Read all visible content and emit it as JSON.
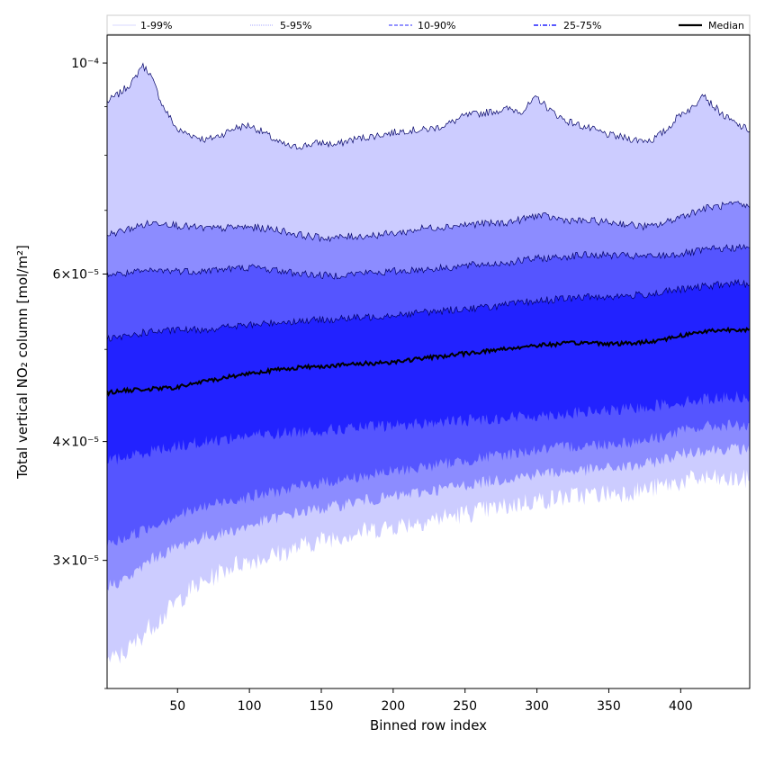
{
  "chart_data": {
    "type": "area",
    "title": "",
    "xlabel": "Binned row index",
    "ylabel": "Total vertical NO₂ column [mol/m²]",
    "xlim": [
      1,
      448
    ],
    "ylim": [
      2.2e-05,
      0.000107
    ],
    "yscale": "log",
    "grid": false,
    "legend_position": "top",
    "x_ticks": [
      50,
      100,
      150,
      200,
      250,
      300,
      350,
      400
    ],
    "y_tick_labels": [
      {
        "value": 0.0001,
        "label": "10⁻⁴"
      },
      {
        "value": 6e-05,
        "label": "6×10⁻⁵"
      },
      {
        "value": 4e-05,
        "label": "4×10⁻⁵"
      },
      {
        "value": 3e-05,
        "label": "3×10⁻⁵"
      }
    ],
    "y_minor_ticks": [
      2.2e-05,
      5e-05,
      7e-05,
      8e-05,
      9e-05
    ],
    "colors": {
      "band_1_99": "#ccccff",
      "band_5_95": "#8c8cff",
      "band_10_90": "#5555ff",
      "band_25_75": "#2222ff",
      "median": "#000000",
      "edge_line": "#000066"
    },
    "legend": [
      {
        "label": "1-99%",
        "style": "thin-solid",
        "color": "#ccccff"
      },
      {
        "label": "5-95%",
        "style": "thin-dotted",
        "color": "#8c8cff"
      },
      {
        "label": "10-90%",
        "style": "dashed",
        "color": "#5555ff"
      },
      {
        "label": "25-75%",
        "style": "dashdot",
        "color": "#2222ff"
      },
      {
        "label": "Median",
        "style": "thick-solid",
        "color": "#000000"
      }
    ],
    "x": [
      1,
      10,
      20,
      25,
      30,
      40,
      50,
      60,
      70,
      80,
      90,
      100,
      110,
      120,
      130,
      140,
      150,
      160,
      170,
      180,
      190,
      200,
      210,
      220,
      230,
      240,
      250,
      260,
      270,
      280,
      290,
      300,
      310,
      320,
      330,
      340,
      350,
      360,
      370,
      380,
      390,
      400,
      410,
      415,
      420,
      430,
      440,
      448
    ],
    "series": [
      {
        "name": "1-99%",
        "upper": [
          9.1e-05,
          9.3e-05,
          9.6e-05,
          9.95e-05,
          9.8e-05,
          9e-05,
          8.5e-05,
          8.4e-05,
          8.3e-05,
          8.4e-05,
          8.55e-05,
          8.6e-05,
          8.45e-05,
          8.25e-05,
          8.15e-05,
          8.2e-05,
          8.25e-05,
          8.2e-05,
          8.3e-05,
          8.35e-05,
          8.4e-05,
          8.45e-05,
          8.5e-05,
          8.5e-05,
          8.55e-05,
          8.65e-05,
          8.8e-05,
          8.85e-05,
          8.9e-05,
          8.95e-05,
          8.9e-05,
          9.2e-05,
          8.9e-05,
          8.7e-05,
          8.6e-05,
          8.5e-05,
          8.4e-05,
          8.35e-05,
          8.3e-05,
          8.3e-05,
          8.5e-05,
          8.85e-05,
          9e-05,
          9.35e-05,
          9.1e-05,
          8.8e-05,
          8.6e-05,
          8.5e-05
        ],
        "lower": [
          2.35e-05,
          2.38e-05,
          2.45e-05,
          2.5e-05,
          2.55e-05,
          2.62e-05,
          2.72e-05,
          2.8e-05,
          2.85e-05,
          2.92e-05,
          2.97e-05,
          3e-05,
          3.02e-05,
          3.05e-05,
          3.08e-05,
          3.12e-05,
          3.15e-05,
          3.18e-05,
          3.2e-05,
          3.22e-05,
          3.24e-05,
          3.26e-05,
          3.28e-05,
          3.3e-05,
          3.32e-05,
          3.34e-05,
          3.36e-05,
          3.38e-05,
          3.4e-05,
          3.42e-05,
          3.45e-05,
          3.47e-05,
          3.48e-05,
          3.5e-05,
          3.51e-05,
          3.52e-05,
          3.53e-05,
          3.54e-05,
          3.55e-05,
          3.57e-05,
          3.6e-05,
          3.63e-05,
          3.65e-05,
          3.66e-05,
          3.66e-05,
          3.64e-05,
          3.65e-05,
          3.65e-05
        ]
      },
      {
        "name": "5-95%",
        "upper": [
          6.6e-05,
          6.65e-05,
          6.72e-05,
          6.75e-05,
          6.78e-05,
          6.8e-05,
          6.75e-05,
          6.72e-05,
          6.7e-05,
          6.7e-05,
          6.72e-05,
          6.72e-05,
          6.7e-05,
          6.68e-05,
          6.62e-05,
          6.58e-05,
          6.55e-05,
          6.55e-05,
          6.57e-05,
          6.58e-05,
          6.6e-05,
          6.62e-05,
          6.65e-05,
          6.7e-05,
          6.72e-05,
          6.74e-05,
          6.76e-05,
          6.78e-05,
          6.78e-05,
          6.8e-05,
          6.85e-05,
          6.92e-05,
          6.88e-05,
          6.84e-05,
          6.82e-05,
          6.82e-05,
          6.8e-05,
          6.78e-05,
          6.74e-05,
          6.73e-05,
          6.8e-05,
          6.9e-05,
          6.98e-05,
          7.02e-05,
          7.05e-05,
          7.08e-05,
          7.1e-05,
          7.05e-05
        ],
        "lower": [
          2.82e-05,
          2.85e-05,
          2.9e-05,
          2.95e-05,
          3e-05,
          3.05e-05,
          3.1e-05,
          3.14e-05,
          3.18e-05,
          3.2e-05,
          3.23e-05,
          3.26e-05,
          3.3e-05,
          3.33e-05,
          3.36e-05,
          3.38e-05,
          3.4e-05,
          3.42e-05,
          3.45e-05,
          3.47e-05,
          3.48e-05,
          3.5e-05,
          3.52e-05,
          3.54e-05,
          3.56e-05,
          3.58e-05,
          3.6e-05,
          3.62e-05,
          3.64e-05,
          3.66e-05,
          3.68e-05,
          3.7e-05,
          3.71e-05,
          3.72e-05,
          3.73e-05,
          3.74e-05,
          3.75e-05,
          3.76e-05,
          3.77e-05,
          3.8e-05,
          3.84e-05,
          3.88e-05,
          3.91e-05,
          3.92e-05,
          3.92e-05,
          3.93e-05,
          3.93e-05,
          3.92e-05
        ]
      },
      {
        "name": "10-90%",
        "upper": [
          6e-05,
          6e-05,
          6.02e-05,
          6.03e-05,
          6.04e-05,
          6.05e-05,
          6.05e-05,
          6.04e-05,
          6.05e-05,
          6.07e-05,
          6.08e-05,
          6.1e-05,
          6.08e-05,
          6.05e-05,
          6.02e-05,
          6e-05,
          5.98e-05,
          5.98e-05,
          6e-05,
          6.02e-05,
          6.02e-05,
          6.04e-05,
          6.05e-05,
          6.07e-05,
          6.08e-05,
          6.1e-05,
          6.12e-05,
          6.14e-05,
          6.15e-05,
          6.17e-05,
          6.2e-05,
          6.23e-05,
          6.24e-05,
          6.26e-05,
          6.28e-05,
          6.28e-05,
          6.28e-05,
          6.27e-05,
          6.26e-05,
          6.26e-05,
          6.28e-05,
          6.3e-05,
          6.33e-05,
          6.35e-05,
          6.37e-05,
          6.38e-05,
          6.4e-05,
          6.38e-05
        ],
        "lower": [
          3.12e-05,
          3.15e-05,
          3.2e-05,
          3.22e-05,
          3.25e-05,
          3.3e-05,
          3.35e-05,
          3.38e-05,
          3.42e-05,
          3.45e-05,
          3.48e-05,
          3.5e-05,
          3.52e-05,
          3.55e-05,
          3.57e-05,
          3.6e-05,
          3.62e-05,
          3.64e-05,
          3.66e-05,
          3.68e-05,
          3.7e-05,
          3.72e-05,
          3.74e-05,
          3.76e-05,
          3.78e-05,
          3.8e-05,
          3.82e-05,
          3.84e-05,
          3.86e-05,
          3.88e-05,
          3.9e-05,
          3.92e-05,
          3.93e-05,
          3.95e-05,
          3.96e-05,
          3.97e-05,
          3.98e-05,
          3.99e-05,
          4e-05,
          4.03e-05,
          4.06e-05,
          4.1e-05,
          4.13e-05,
          4.14e-05,
          4.15e-05,
          4.16e-05,
          4.16e-05,
          4.15e-05
        ]
      },
      {
        "name": "25-75%",
        "upper": [
          5.12e-05,
          5.14e-05,
          5.18e-05,
          5.2e-05,
          5.22e-05,
          5.22e-05,
          5.24e-05,
          5.24e-05,
          5.25e-05,
          5.27e-05,
          5.29e-05,
          5.3e-05,
          5.32e-05,
          5.34e-05,
          5.35e-05,
          5.36e-05,
          5.37e-05,
          5.38e-05,
          5.39e-05,
          5.4e-05,
          5.42e-05,
          5.44e-05,
          5.45e-05,
          5.47e-05,
          5.48e-05,
          5.5e-05,
          5.52e-05,
          5.53e-05,
          5.55e-05,
          5.57e-05,
          5.6e-05,
          5.62e-05,
          5.64e-05,
          5.65e-05,
          5.67e-05,
          5.68e-05,
          5.68e-05,
          5.69e-05,
          5.7e-05,
          5.72e-05,
          5.75e-05,
          5.78e-05,
          5.8e-05,
          5.82e-05,
          5.83e-05,
          5.85e-05,
          5.87e-05,
          5.85e-05
        ],
        "lower": [
          3.82e-05,
          3.84e-05,
          3.87e-05,
          3.89e-05,
          3.91e-05,
          3.93e-05,
          3.96e-05,
          3.98e-05,
          4e-05,
          4.02e-05,
          4.04e-05,
          4.06e-05,
          4.07e-05,
          4.08e-05,
          4.09e-05,
          4.1e-05,
          4.11e-05,
          4.12e-05,
          4.13e-05,
          4.14e-05,
          4.15e-05,
          4.16e-05,
          4.17e-05,
          4.18e-05,
          4.19e-05,
          4.2e-05,
          4.21e-05,
          4.22e-05,
          4.23e-05,
          4.24e-05,
          4.25e-05,
          4.26e-05,
          4.27e-05,
          4.28e-05,
          4.29e-05,
          4.3e-05,
          4.31e-05,
          4.32e-05,
          4.34e-05,
          4.36e-05,
          4.38e-05,
          4.4e-05,
          4.42e-05,
          4.43e-05,
          4.44e-05,
          4.45e-05,
          4.46e-05,
          4.46e-05
        ]
      },
      {
        "name": "Median",
        "values": [
          4.5e-05,
          4.52e-05,
          4.53e-05,
          4.54e-05,
          4.54e-05,
          4.55e-05,
          4.56e-05,
          4.6e-05,
          4.63e-05,
          4.66e-05,
          4.69e-05,
          4.72e-05,
          4.74e-05,
          4.76e-05,
          4.78e-05,
          4.79e-05,
          4.8e-05,
          4.81e-05,
          4.82e-05,
          4.83e-05,
          4.84e-05,
          4.85e-05,
          4.87e-05,
          4.89e-05,
          4.91e-05,
          4.93e-05,
          4.95e-05,
          4.97e-05,
          4.99e-05,
          5.01e-05,
          5.03e-05,
          5.05e-05,
          5.06e-05,
          5.07e-05,
          5.08e-05,
          5.08e-05,
          5.07e-05,
          5.07e-05,
          5.08e-05,
          5.1e-05,
          5.13e-05,
          5.17e-05,
          5.2e-05,
          5.22e-05,
          5.23e-05,
          5.24e-05,
          5.25e-05,
          5.24e-05
        ]
      }
    ]
  }
}
